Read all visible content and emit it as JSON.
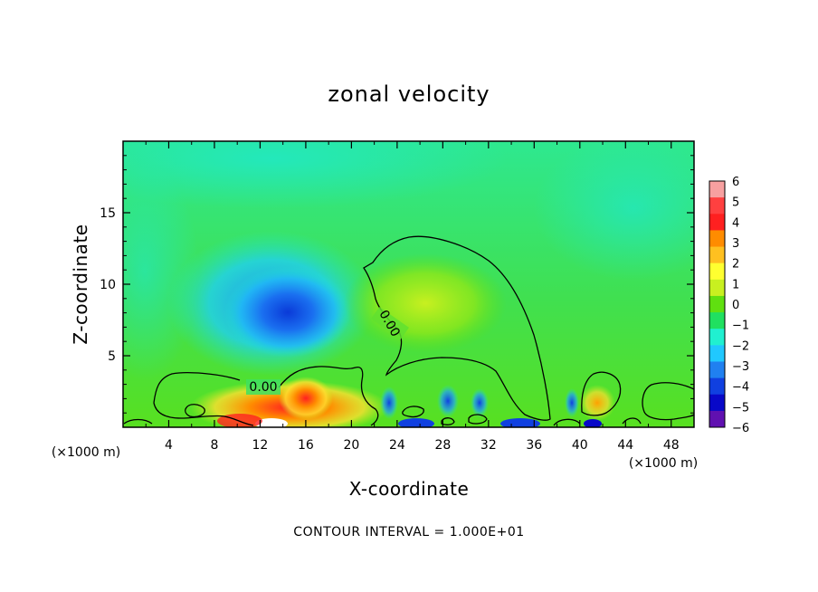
{
  "chart_data": {
    "type": "heatmap",
    "title": "zonal velocity",
    "xlabel": "X-coordinate",
    "ylabel": "Z-coordinate",
    "x_unit": "(×1000 m)",
    "xlim": [
      0,
      50
    ],
    "ylim": [
      0,
      20
    ],
    "x_ticks": [
      4,
      8,
      12,
      16,
      20,
      24,
      28,
      32,
      36,
      40,
      44,
      48
    ],
    "y_ticks": [
      5,
      10,
      15
    ],
    "colorbar": {
      "levels": [
        6,
        5,
        4,
        3,
        2,
        1,
        0,
        -1,
        -2,
        -3,
        -4,
        -5,
        -6
      ],
      "colors": [
        "#f7a0a0",
        "#ff4040",
        "#ff2020",
        "#ff8c00",
        "#ffc020",
        "#ffff30",
        "#c8f020",
        "#60e010",
        "#20e060",
        "#20f0d0",
        "#20c8ff",
        "#2080f0",
        "#1040e0",
        "#0808c8",
        "#6010b0"
      ]
    },
    "contour_labels": [
      "0.00",
      "0.00"
    ],
    "footer": "CONTOUR INTERVAL = 1.000E+01",
    "features": [
      {
        "kind": "negative",
        "x": 16,
        "z": 8.5,
        "value": -4.5
      },
      {
        "kind": "negative",
        "x": 13,
        "z": 9.5,
        "value": -3
      },
      {
        "kind": "positive",
        "x": 28,
        "z": 8.5,
        "value": 1.3
      },
      {
        "kind": "positive",
        "x": 15,
        "z": 1.5,
        "value": 4
      },
      {
        "kind": "positive",
        "x": 40.5,
        "z": 1.5,
        "value": 2
      }
    ]
  }
}
